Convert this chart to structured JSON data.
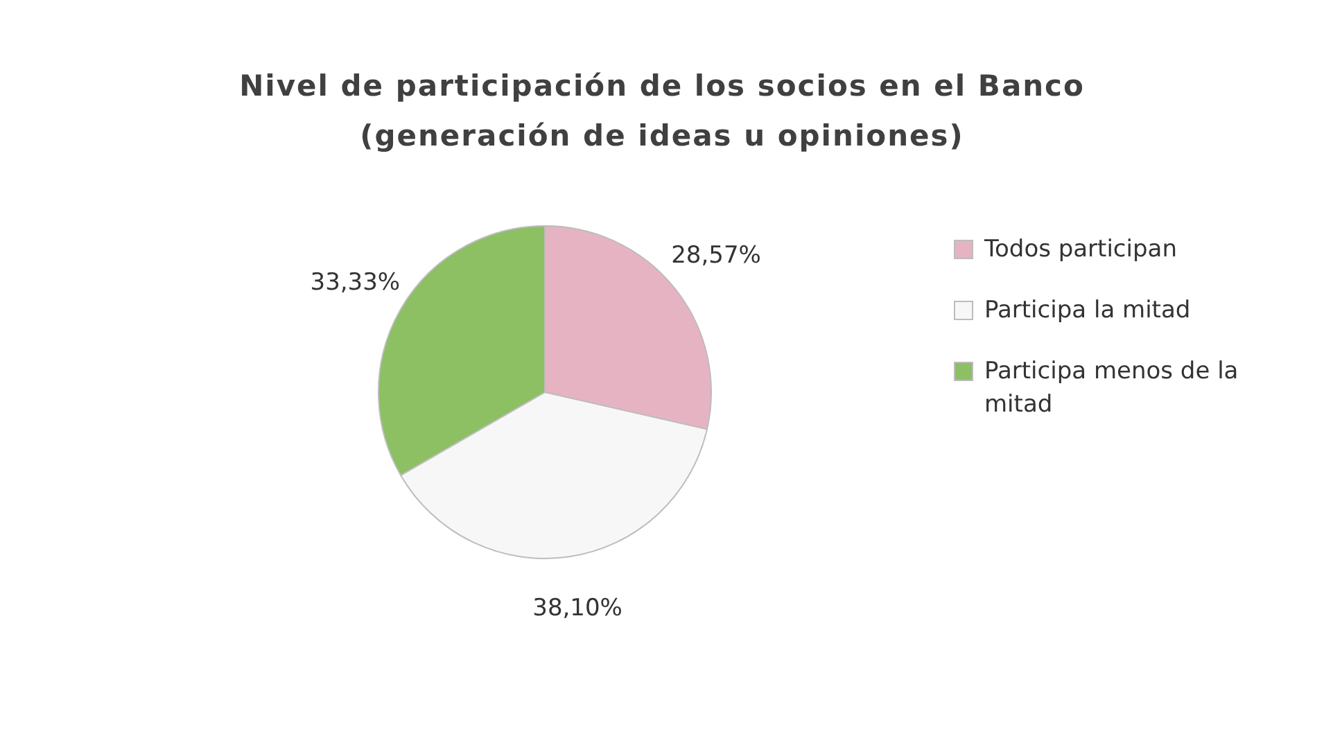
{
  "chart_data": {
    "type": "pie",
    "title": "Nivel de participación de los socios en el Banco (generación de ideas u opiniones)",
    "categories": [
      "Todos participan",
      "Participa la mitad",
      "Participa menos de la mitad"
    ],
    "values": [
      28.57,
      38.1,
      33.33
    ],
    "colors": [
      "#e6b3c3",
      "#f7f7f7",
      "#8cc063"
    ],
    "value_labels": [
      "28,57%",
      "38,10%",
      "33,33%"
    ],
    "legend": "right"
  }
}
